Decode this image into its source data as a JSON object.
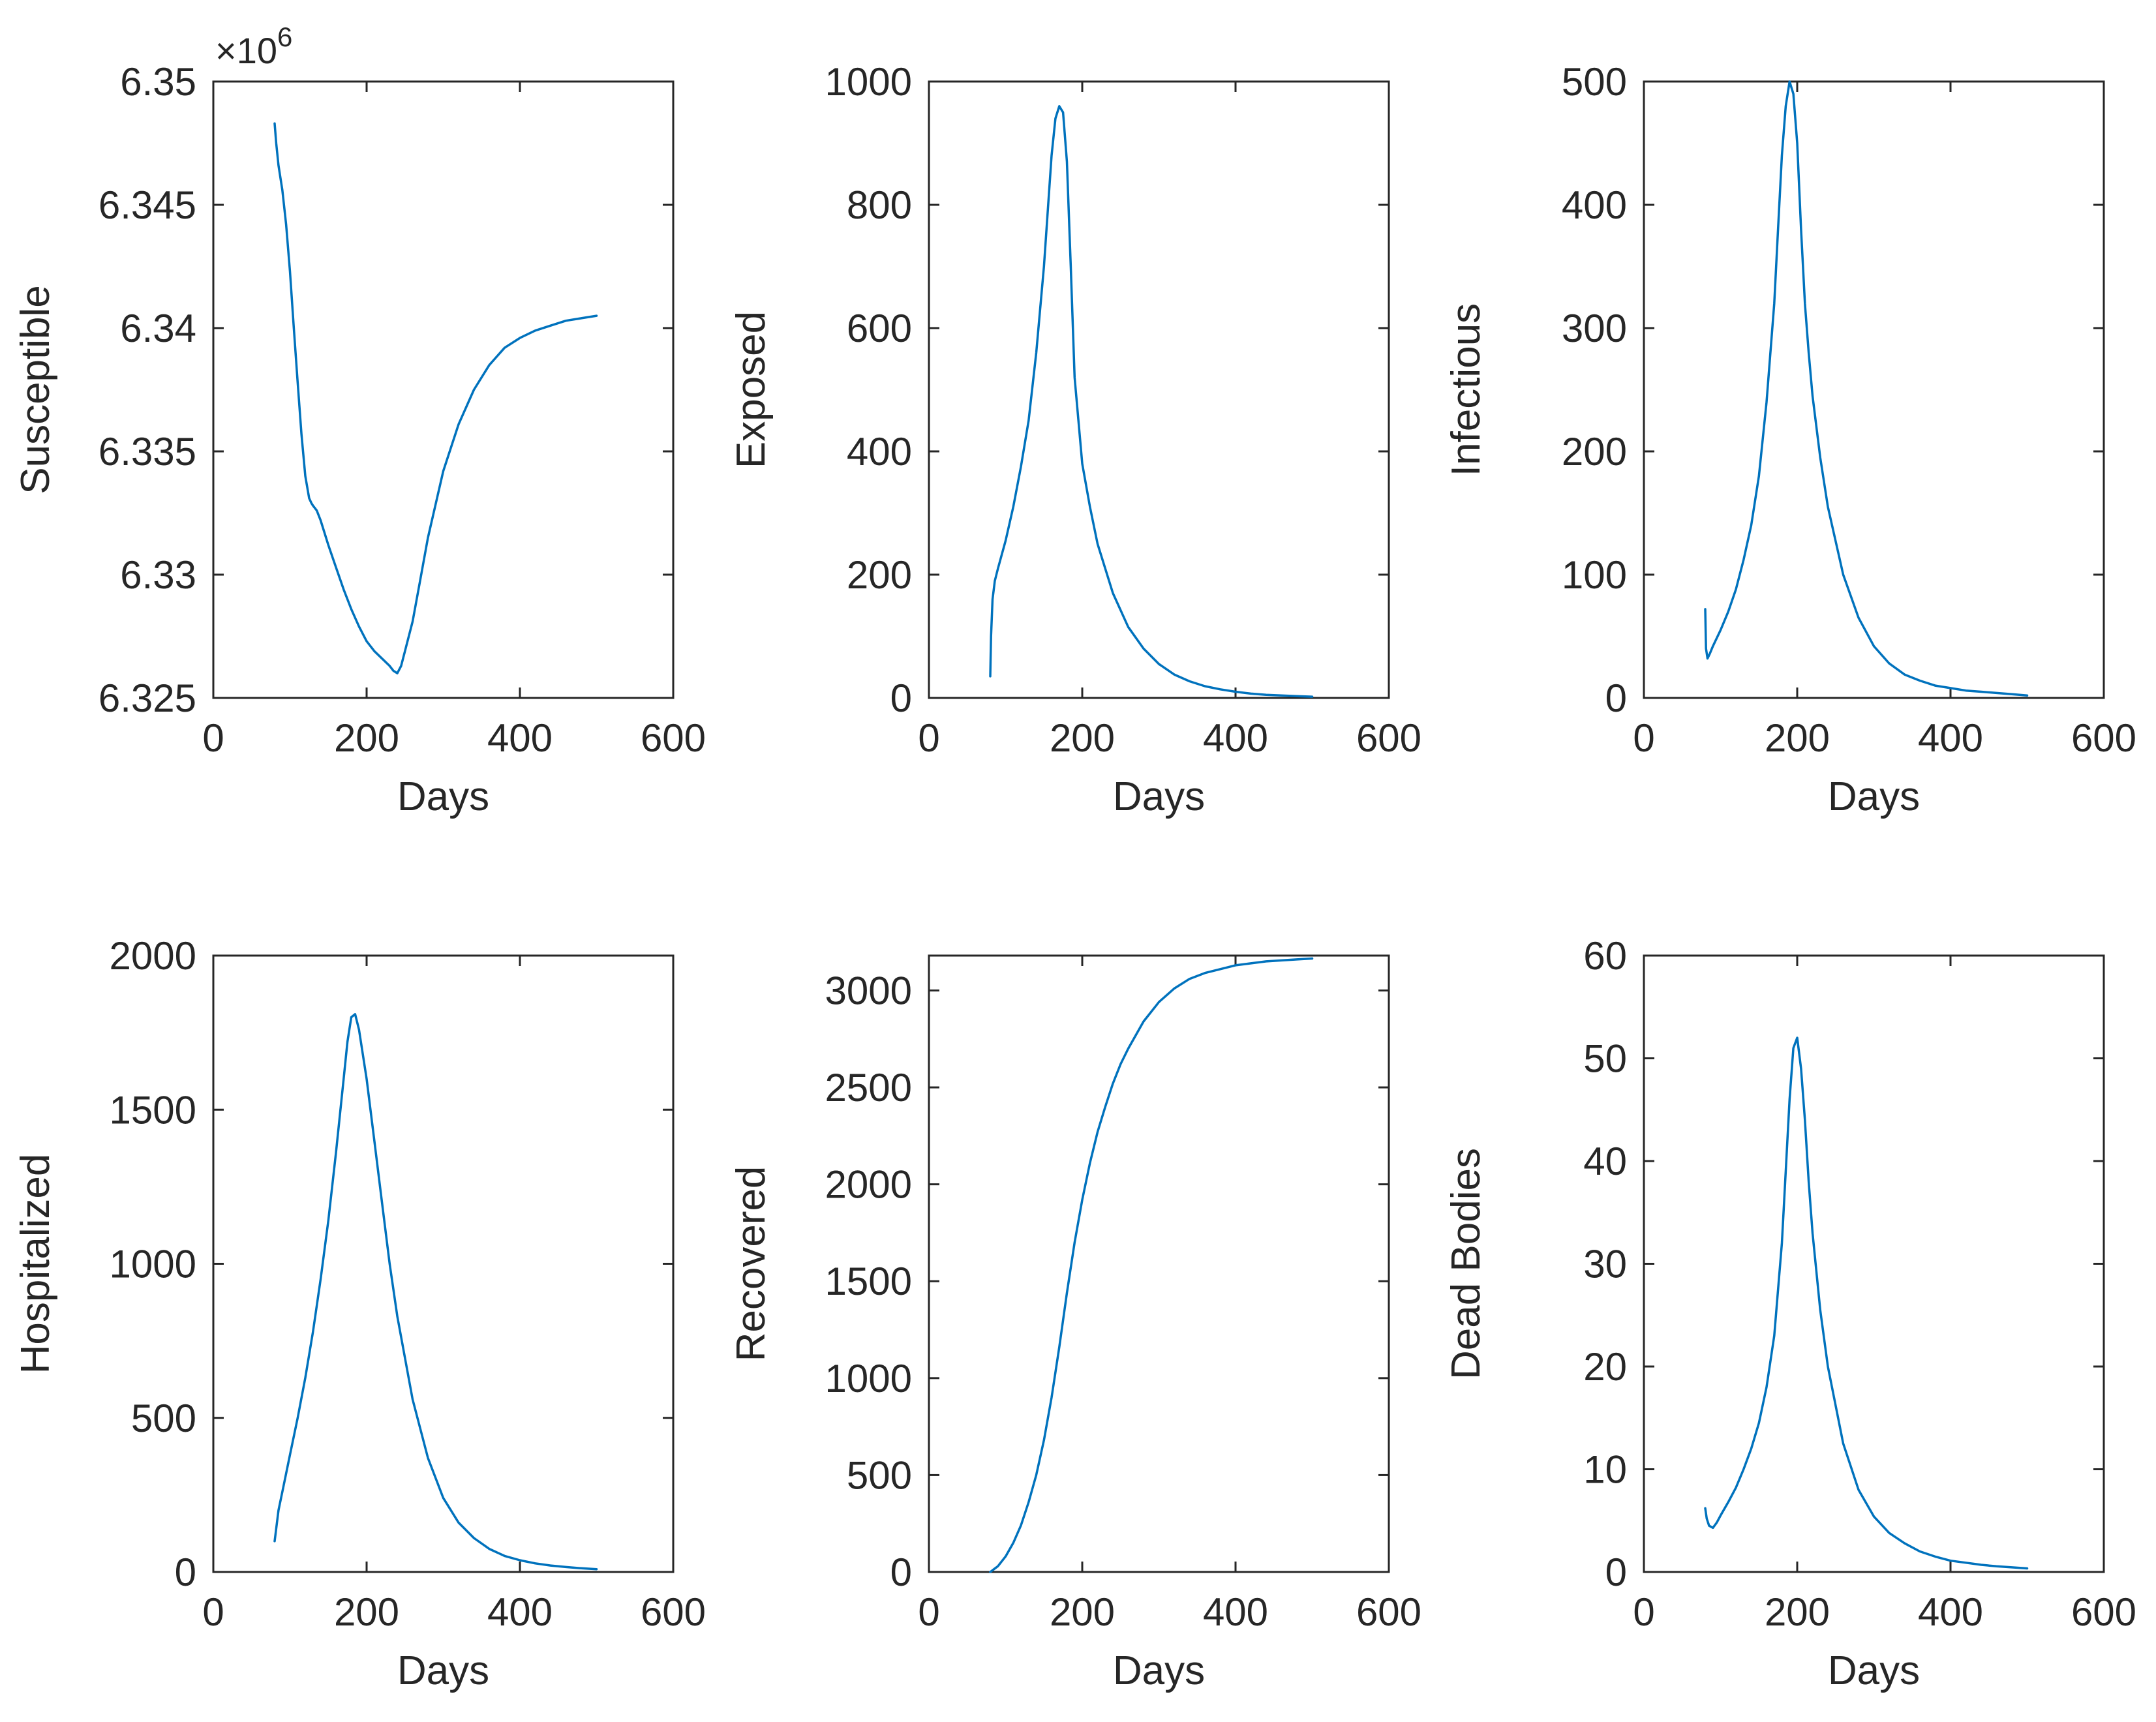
{
  "colors": {
    "line": "#0072BD",
    "axis": "#262626",
    "background": "#ffffff"
  },
  "chart_data": [
    {
      "type": "line",
      "title": "",
      "xlabel": "Days",
      "ylabel": "Susceptible",
      "xlim": [
        0,
        600
      ],
      "ylim": [
        6325000,
        6350000
      ],
      "xticks": [
        0,
        200,
        400,
        600
      ],
      "xtick_labels": [
        "0",
        "200",
        "400",
        "600"
      ],
      "yticks": [
        6325000,
        6330000,
        6335000,
        6340000,
        6345000,
        6350000
      ],
      "ytick_labels": [
        "6.325",
        "6.33",
        "6.335",
        "6.34",
        "6.345",
        "6.35"
      ],
      "exponent_prefix": "×10",
      "exponent_power": "6",
      "grid": false,
      "series": [
        {
          "name": "Susceptible",
          "x": [
            80,
            82,
            85,
            90,
            95,
            100,
            105,
            110,
            115,
            120,
            125,
            128,
            130,
            135,
            140,
            145,
            150,
            160,
            170,
            180,
            190,
            200,
            210,
            220,
            230,
            235,
            240,
            245,
            250,
            260,
            270,
            280,
            300,
            320,
            340,
            360,
            380,
            400,
            420,
            440,
            460,
            480,
            500
          ],
          "y": [
            6348300,
            6347500,
            6346600,
            6345600,
            6344200,
            6342300,
            6340000,
            6337800,
            6335700,
            6334000,
            6333100,
            6332900,
            6332800,
            6332600,
            6332200,
            6331700,
            6331200,
            6330300,
            6329400,
            6328600,
            6327900,
            6327300,
            6326900,
            6326600,
            6326300,
            6326100,
            6326000,
            6326300,
            6326900,
            6328100,
            6329800,
            6331500,
            6334200,
            6336100,
            6337500,
            6338500,
            6339200,
            6339600,
            6339900,
            6340100,
            6340300,
            6340400,
            6340500
          ]
        }
      ]
    },
    {
      "type": "line",
      "title": "",
      "xlabel": "Days",
      "ylabel": "Exposed",
      "xlim": [
        0,
        600
      ],
      "ylim": [
        0,
        1000
      ],
      "xticks": [
        0,
        200,
        400,
        600
      ],
      "xtick_labels": [
        "0",
        "200",
        "400",
        "600"
      ],
      "yticks": [
        0,
        200,
        400,
        600,
        800,
        1000
      ],
      "ytick_labels": [
        "0",
        "200",
        "400",
        "600",
        "800",
        "1000"
      ],
      "grid": false,
      "series": [
        {
          "name": "Exposed",
          "x": [
            80,
            81,
            83,
            86,
            90,
            100,
            110,
            120,
            130,
            140,
            150,
            160,
            165,
            170,
            175,
            180,
            185,
            190,
            200,
            210,
            220,
            240,
            260,
            280,
            300,
            320,
            340,
            360,
            380,
            400,
            420,
            440,
            460,
            480,
            500
          ],
          "y": [
            35,
            100,
            160,
            190,
            210,
            255,
            310,
            375,
            450,
            560,
            700,
            880,
            940,
            960,
            950,
            870,
            700,
            520,
            380,
            310,
            250,
            170,
            115,
            80,
            55,
            38,
            27,
            19,
            14,
            10,
            7,
            5,
            4,
            3,
            2
          ]
        }
      ]
    },
    {
      "type": "line",
      "title": "",
      "xlabel": "Days",
      "ylabel": "Infectious",
      "xlim": [
        0,
        600
      ],
      "ylim": [
        0,
        500
      ],
      "xticks": [
        0,
        200,
        400,
        600
      ],
      "xtick_labels": [
        "0",
        "200",
        "400",
        "600"
      ],
      "yticks": [
        0,
        100,
        200,
        300,
        400,
        500
      ],
      "ytick_labels": [
        "0",
        "100",
        "200",
        "300",
        "400",
        "500"
      ],
      "grid": false,
      "series": [
        {
          "name": "Infectious",
          "x": [
            80,
            81,
            83,
            86,
            90,
            100,
            110,
            120,
            130,
            140,
            150,
            160,
            170,
            175,
            180,
            185,
            190,
            195,
            200,
            205,
            210,
            215,
            220,
            230,
            240,
            260,
            280,
            300,
            320,
            340,
            360,
            380,
            400,
            420,
            440,
            460,
            480,
            500
          ],
          "y": [
            72,
            40,
            32,
            36,
            42,
            55,
            70,
            88,
            112,
            140,
            180,
            240,
            320,
            380,
            440,
            480,
            500,
            490,
            450,
            380,
            320,
            280,
            245,
            195,
            155,
            100,
            65,
            42,
            28,
            19,
            14,
            10,
            8,
            6,
            5,
            4,
            3,
            2
          ]
        }
      ]
    },
    {
      "type": "line",
      "title": "",
      "xlabel": "Days",
      "ylabel": "Hospitalized",
      "xlim": [
        0,
        600
      ],
      "ylim": [
        0,
        2000
      ],
      "xticks": [
        0,
        200,
        400,
        600
      ],
      "xtick_labels": [
        "0",
        "200",
        "400",
        "600"
      ],
      "yticks": [
        0,
        500,
        1000,
        1500,
        2000
      ],
      "ytick_labels": [
        "0",
        "500",
        "1000",
        "1500",
        "2000"
      ],
      "grid": false,
      "series": [
        {
          "name": "Hospitalized",
          "x": [
            80,
            85,
            90,
            100,
            110,
            120,
            130,
            140,
            150,
            160,
            170,
            175,
            180,
            185,
            190,
            200,
            210,
            220,
            230,
            240,
            260,
            280,
            300,
            320,
            340,
            360,
            380,
            400,
            420,
            440,
            460,
            480,
            500
          ],
          "y": [
            100,
            200,
            260,
            380,
            500,
            630,
            780,
            950,
            1140,
            1360,
            1600,
            1720,
            1800,
            1810,
            1760,
            1600,
            1400,
            1200,
            1000,
            830,
            560,
            370,
            240,
            160,
            110,
            75,
            52,
            38,
            28,
            21,
            16,
            12,
            9
          ]
        }
      ]
    },
    {
      "type": "line",
      "title": "",
      "xlabel": "Days",
      "ylabel": "Recovered",
      "xlim": [
        0,
        600
      ],
      "ylim": [
        0,
        3180
      ],
      "xticks": [
        0,
        200,
        400,
        600
      ],
      "xtick_labels": [
        "0",
        "200",
        "400",
        "600"
      ],
      "yticks": [
        0,
        500,
        1000,
        1500,
        2000,
        2500,
        3000
      ],
      "ytick_labels": [
        "0",
        "500",
        "1000",
        "1500",
        "2000",
        "2500",
        "3000"
      ],
      "grid": false,
      "series": [
        {
          "name": "Recovered",
          "x": [
            80,
            90,
            100,
            110,
            120,
            130,
            140,
            150,
            160,
            170,
            180,
            190,
            200,
            210,
            220,
            230,
            240,
            250,
            260,
            280,
            300,
            320,
            340,
            360,
            380,
            400,
            420,
            440,
            460,
            480,
            500
          ],
          "y": [
            0,
            30,
            80,
            150,
            240,
            360,
            500,
            680,
            900,
            1160,
            1440,
            1700,
            1920,
            2110,
            2270,
            2400,
            2520,
            2620,
            2700,
            2840,
            2940,
            3010,
            3060,
            3090,
            3110,
            3130,
            3140,
            3150,
            3155,
            3160,
            3165
          ]
        }
      ]
    },
    {
      "type": "line",
      "title": "",
      "xlabel": "Days",
      "ylabel": "Dead Bodies",
      "xlim": [
        0,
        600
      ],
      "ylim": [
        0,
        60
      ],
      "xticks": [
        0,
        200,
        400,
        600
      ],
      "xtick_labels": [
        "0",
        "200",
        "400",
        "600"
      ],
      "yticks": [
        0,
        10,
        20,
        30,
        40,
        50,
        60
      ],
      "ytick_labels": [
        "0",
        "10",
        "20",
        "30",
        "40",
        "50",
        "60"
      ],
      "grid": false,
      "series": [
        {
          "name": "Dead Bodies",
          "x": [
            80,
            82,
            85,
            90,
            95,
            100,
            110,
            120,
            130,
            140,
            150,
            160,
            170,
            180,
            185,
            190,
            195,
            200,
            205,
            210,
            215,
            220,
            230,
            240,
            260,
            280,
            300,
            320,
            340,
            360,
            380,
            400,
            420,
            440,
            460,
            480,
            500
          ],
          "y": [
            6.2,
            5.2,
            4.5,
            4.3,
            4.8,
            5.5,
            6.8,
            8.2,
            10,
            12,
            14.5,
            18,
            23,
            32,
            39,
            46,
            51,
            52,
            49,
            44,
            38,
            33,
            25.5,
            20,
            12.5,
            8,
            5.4,
            3.8,
            2.8,
            2,
            1.5,
            1.1,
            0.9,
            0.7,
            0.55,
            0.45,
            0.35
          ]
        }
      ]
    }
  ]
}
